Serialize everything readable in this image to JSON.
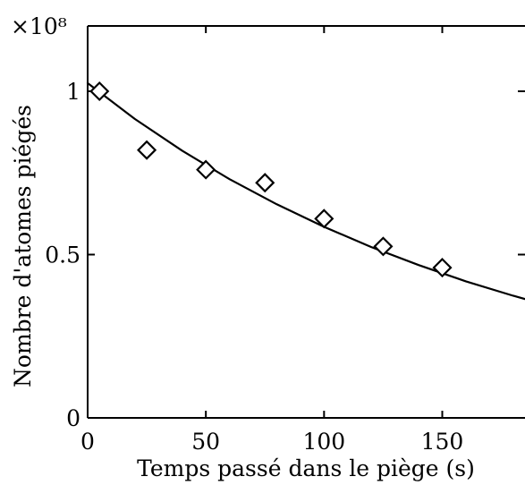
{
  "chart_data": {
    "type": "scatter",
    "xlabel": "Temps passé dans le piège (s)",
    "ylabel": "Nombre d'atomes piégés",
    "y_multiplier_label": "×10⁸",
    "xlim": [
      0,
      185
    ],
    "ylim": [
      0,
      1.2
    ],
    "x_ticks": [
      0,
      50,
      100,
      150
    ],
    "x_tick_labels": [
      "0",
      "50",
      "100",
      "150"
    ],
    "y_ticks": [
      0,
      0.5,
      1
    ],
    "y_tick_labels": [
      "0",
      "0.5",
      "1"
    ],
    "grid": false,
    "series": [
      {
        "type": "scatter",
        "marker": "diamond",
        "x": [
          5,
          25,
          50,
          75,
          100,
          125,
          150
        ],
        "y": [
          1.0,
          0.82,
          0.76,
          0.72,
          0.61,
          0.525,
          0.46
        ]
      },
      {
        "type": "line",
        "x": [
          0,
          20,
          40,
          60,
          80,
          100,
          120,
          140,
          160,
          180,
          185
        ],
        "y": [
          1.025,
          0.915,
          0.818,
          0.731,
          0.654,
          0.585,
          0.523,
          0.468,
          0.418,
          0.374,
          0.364
        ]
      }
    ]
  }
}
